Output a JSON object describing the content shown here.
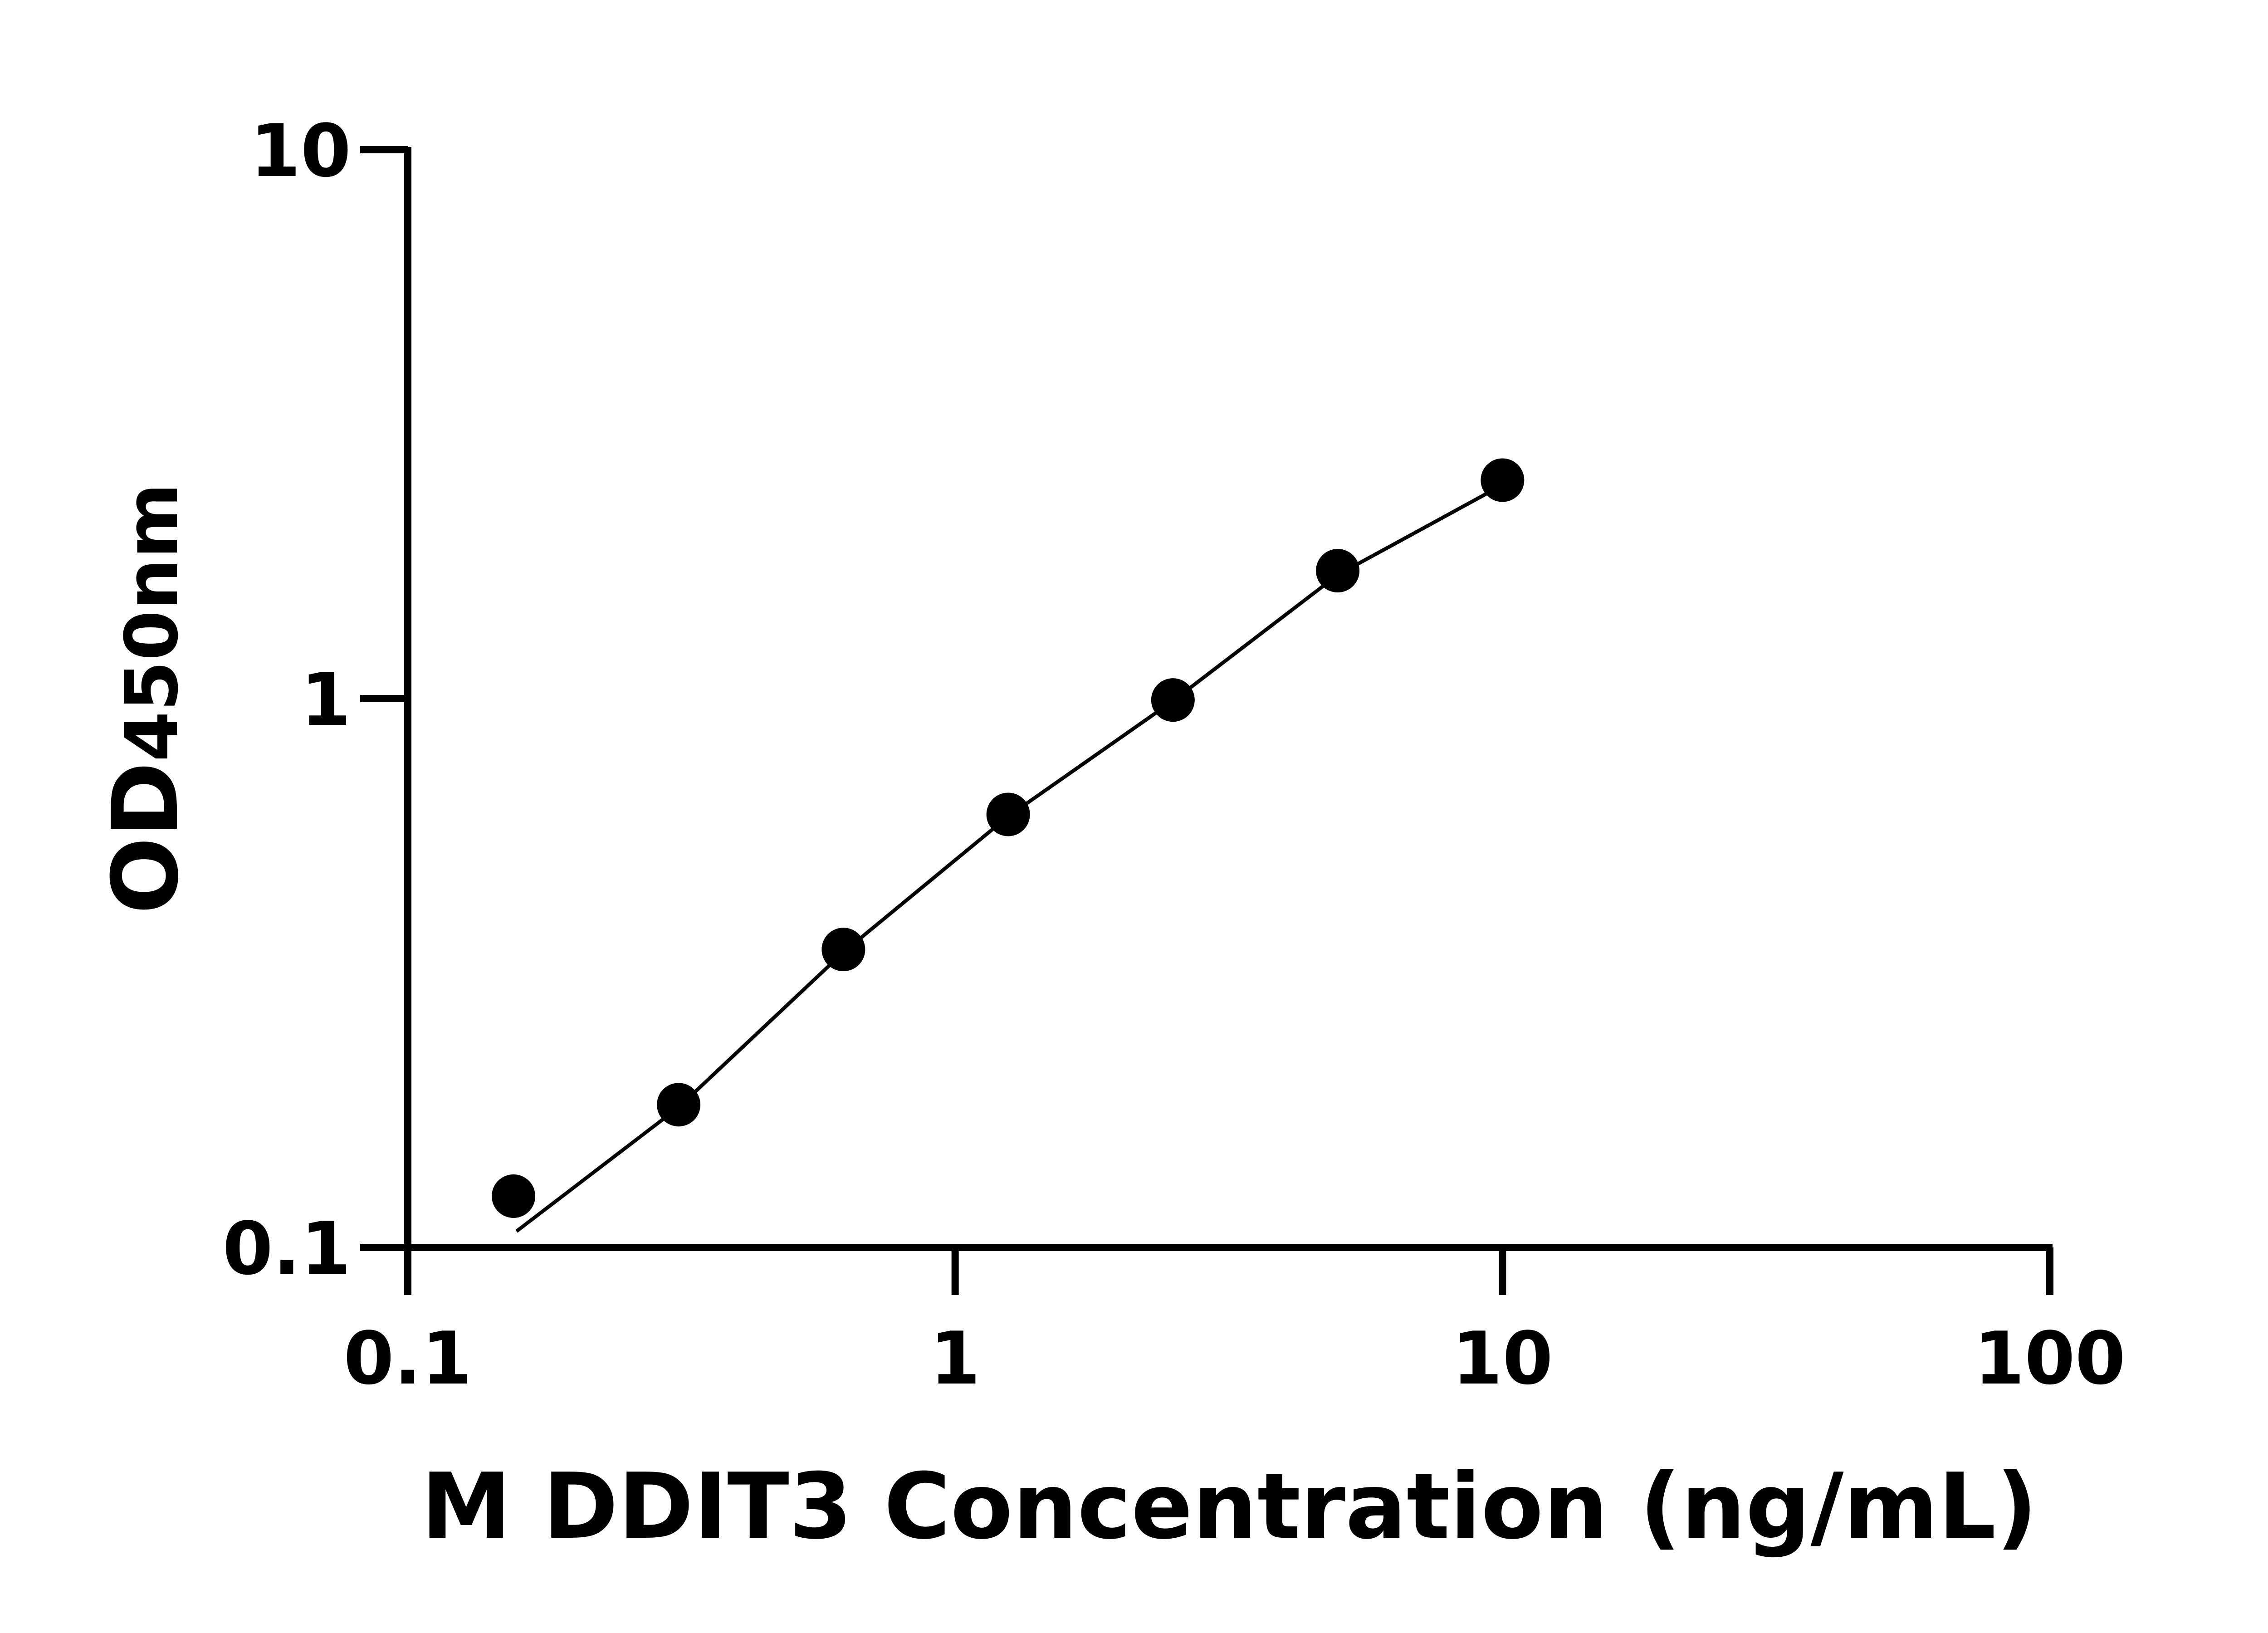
{
  "chart_data": {
    "type": "scatter",
    "title": "",
    "xlabel": "M DDIT3 Concentration (ng/mL)",
    "ylabel_main": "OD",
    "ylabel_sub": "450nm",
    "xscale": "log",
    "yscale": "log",
    "xlim": [
      0.1,
      100
    ],
    "ylim": [
      0.1,
      10
    ],
    "xticks": [
      0.1,
      1,
      10,
      100
    ],
    "xtick_labels": [
      "0.1",
      "1",
      "10",
      "100"
    ],
    "yticks": [
      0.1,
      1,
      10
    ],
    "ytick_labels": [
      "0.1",
      "1",
      "10"
    ],
    "grid": false,
    "points": [
      {
        "x": 0.156,
        "y": 0.124
      },
      {
        "x": 0.3125,
        "y": 0.182
      },
      {
        "x": 0.625,
        "y": 0.349
      },
      {
        "x": 1.25,
        "y": 0.615
      },
      {
        "x": 2.5,
        "y": 0.994
      },
      {
        "x": 5,
        "y": 1.71
      },
      {
        "x": 10,
        "y": 2.5
      }
    ],
    "fit_curve": [
      {
        "x": 0.158,
        "y": 0.107
      },
      {
        "x": 0.3125,
        "y": 0.18
      },
      {
        "x": 0.625,
        "y": 0.345
      },
      {
        "x": 1.25,
        "y": 0.61
      },
      {
        "x": 2.5,
        "y": 0.99
      },
      {
        "x": 5,
        "y": 1.68
      },
      {
        "x": 10,
        "y": 2.45
      }
    ],
    "colors": {
      "marker": "#000000",
      "line": "#000000"
    }
  }
}
